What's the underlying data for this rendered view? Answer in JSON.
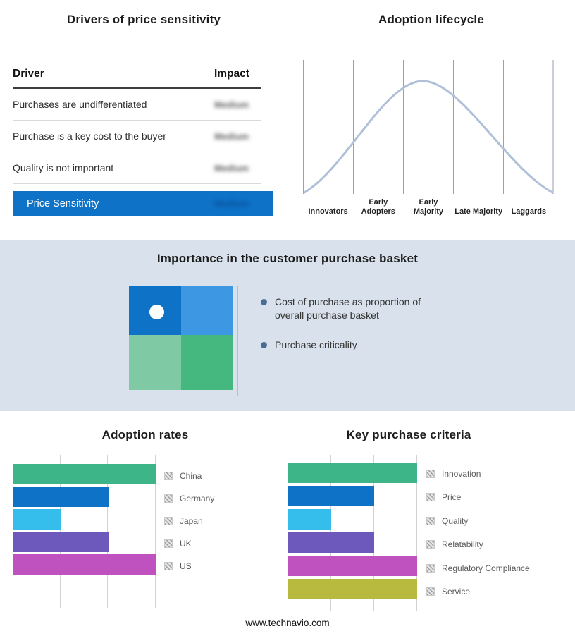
{
  "drivers_panel": {
    "title": "Drivers of price sensitivity",
    "columns": {
      "driver": "Driver",
      "impact": "Impact"
    },
    "rows": [
      {
        "driver": "Purchases are undifferentiated",
        "impact": "Medium"
      },
      {
        "driver": "Purchase is a key cost to the buyer",
        "impact": "Medium"
      },
      {
        "driver": "Quality is not important",
        "impact": "Medium"
      }
    ],
    "highlight": {
      "label": "Price Sensitivity",
      "impact": "Medium"
    },
    "highlight_color": "#0e72c6"
  },
  "lifecycle_panel": {
    "curve_color": "#afc0d8"
  },
  "basket_panel": {
    "title": "Importance in the customer purchase basket",
    "background": "#d9e2ec",
    "bullets": [
      "Cost of purchase as proportion of overall purchase basket",
      "Purchase criticality"
    ],
    "quadrant_colors": [
      "#0e72c6",
      "#3e97e2",
      "#7fcaa5",
      "#44b87f"
    ]
  },
  "footer": "www.technavio.com",
  "chart_data": [
    {
      "type": "line",
      "title": "Adoption lifecycle",
      "categories": [
        "Innovators",
        "Early Adopters",
        "Early Majority",
        "Late Majority",
        "Laggards"
      ],
      "description": "Bell-shaped adoption curve peaking over Early Majority",
      "grid": true,
      "legend_position": "none"
    },
    {
      "type": "bar",
      "orientation": "horizontal",
      "title": "Adoption rates",
      "categories": [
        "China",
        "Germany",
        "Japan",
        "UK",
        "US"
      ],
      "values": [
        3,
        2,
        1,
        2,
        3
      ],
      "xlim": [
        0,
        3
      ],
      "colors": [
        "#3eb489",
        "#0e72c6",
        "#35bdec",
        "#6d58bb",
        "#c052c0"
      ],
      "grid": true,
      "legend_position": "right"
    },
    {
      "type": "bar",
      "orientation": "horizontal",
      "title": "Key purchase criteria",
      "categories": [
        "Innovation",
        "Price",
        "Quality",
        "Relatability",
        "Regulatory Compliance",
        "Service"
      ],
      "values": [
        3,
        2,
        1,
        2,
        3,
        3
      ],
      "xlim": [
        0,
        3
      ],
      "colors": [
        "#3eb489",
        "#0e72c6",
        "#35bdec",
        "#6d58bb",
        "#c052c0",
        "#b8b93f"
      ],
      "grid": true,
      "legend_position": "right"
    }
  ]
}
